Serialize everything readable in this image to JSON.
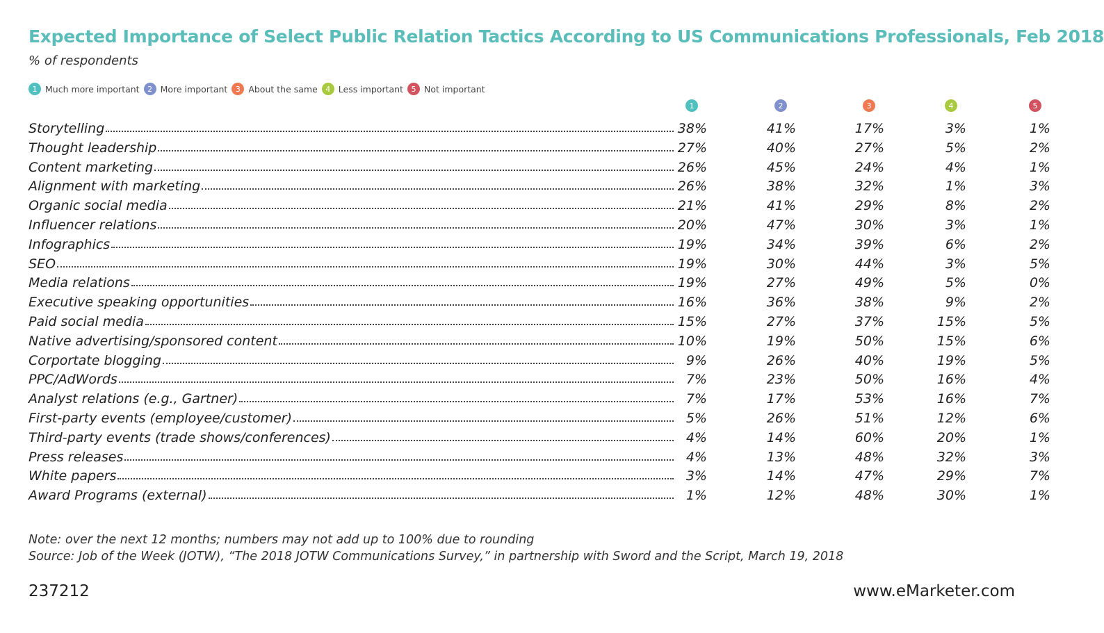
{
  "header": {
    "title": "Expected Importance of Select Public Relation Tactics According to US Communications Professionals, Feb 2018",
    "subtitle": "% of respondents"
  },
  "legend": [
    {
      "number": "1",
      "label": "Much more important",
      "color": "#4fc0bf"
    },
    {
      "number": "2",
      "label": "More important",
      "color": "#7f91cc"
    },
    {
      "number": "3",
      "label": "About the same",
      "color": "#ef7a52"
    },
    {
      "number": "4",
      "label": "Less important",
      "color": "#a9c93f"
    },
    {
      "number": "5",
      "label": "Not important",
      "color": "#d2525f"
    }
  ],
  "table": {
    "columns": [
      "1",
      "2",
      "3",
      "4",
      "5"
    ],
    "rows": [
      [
        "Storytelling",
        "38%",
        "41%",
        "17%",
        "3%",
        "1%"
      ],
      [
        "Thought leadership",
        "27%",
        "40%",
        "27%",
        "5%",
        "2%"
      ],
      [
        "Content marketing",
        "26%",
        "45%",
        "24%",
        "4%",
        "1%"
      ],
      [
        "Alignment with marketing",
        "26%",
        "38%",
        "32%",
        "1%",
        "3%"
      ],
      [
        "Organic social media",
        "21%",
        "41%",
        "29%",
        "8%",
        "2%"
      ],
      [
        "Influencer relations",
        "20%",
        "47%",
        "30%",
        "3%",
        "1%"
      ],
      [
        "Infographics",
        "19%",
        "34%",
        "39%",
        "6%",
        "2%"
      ],
      [
        "SEO",
        "19%",
        "30%",
        "44%",
        "3%",
        "5%"
      ],
      [
        "Media relations",
        "19%",
        "27%",
        "49%",
        "5%",
        "0%"
      ],
      [
        "Executive speaking opportunities",
        "16%",
        "36%",
        "38%",
        "9%",
        "2%"
      ],
      [
        "Paid social media",
        "15%",
        "27%",
        "37%",
        "15%",
        "5%"
      ],
      [
        "Native advertising/sponsored content",
        "10%",
        "19%",
        "50%",
        "15%",
        "6%"
      ],
      [
        "Corportate blogging",
        "9%",
        "26%",
        "40%",
        "19%",
        "5%"
      ],
      [
        "PPC/AdWords",
        "7%",
        "23%",
        "50%",
        "16%",
        "4%"
      ],
      [
        "Analyst relations (e.g., Gartner)",
        "7%",
        "17%",
        "53%",
        "16%",
        "7%"
      ],
      [
        "First-party events (employee/customer)",
        "5%",
        "26%",
        "51%",
        "12%",
        "6%"
      ],
      [
        "Third-party events (trade shows/conferences)",
        "4%",
        "14%",
        "60%",
        "20%",
        "1%"
      ],
      [
        "Press releases",
        "4%",
        "13%",
        "48%",
        "32%",
        "3%"
      ],
      [
        "White papers",
        "3%",
        "14%",
        "47%",
        "29%",
        "7%"
      ],
      [
        "Award Programs (external)",
        "1%",
        "12%",
        "48%",
        "30%",
        "1%"
      ]
    ]
  },
  "footer": {
    "note": "Note: over the next 12 months; numbers may not add up to 100% due to rounding",
    "source": "Source: Job of the Week (JOTW), “The 2018 JOTW Communications Survey,” in partnership with Sword and the Script, March 19, 2018",
    "id": "237212",
    "site": "www.eMarketer.com"
  }
}
